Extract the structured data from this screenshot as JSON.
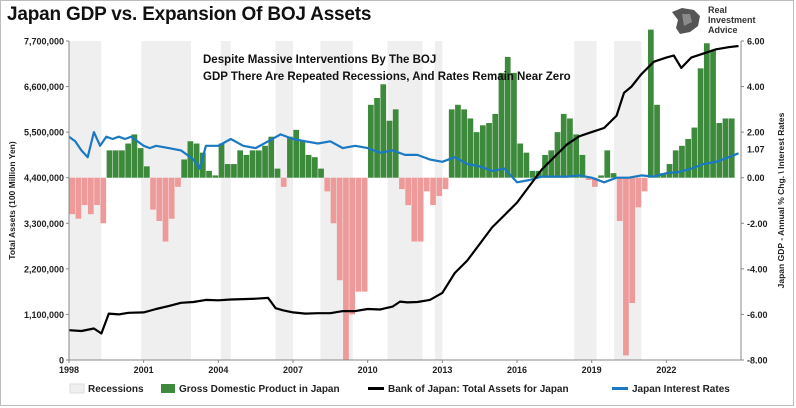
{
  "title": "Japan GDP vs. Expansion Of BOJ Assets",
  "logo": {
    "line1": "Real",
    "line2": "Investment",
    "line3": "Advice"
  },
  "annotation": {
    "line1": "Despite Massive Interventions By The BOJ",
    "line2": "GDP There Are Repeated Recessions, And Rates Remain Near Zero"
  },
  "colors": {
    "recession": "#efefef",
    "gdp_pos": "#3d8a3d",
    "gdp_neg": "#ef9a9a",
    "boj": "#000000",
    "rates": "#1a79c2"
  },
  "chart_data": {
    "type": "bar",
    "title": "Japan GDP vs. Expansion Of BOJ Assets",
    "ylabel_left": "Total Assets (100 Million Yen)",
    "ylabel_right": "Japan GDP - Annual % Chg. \\ Interest Rates",
    "xlim": [
      1998.0,
      2025.0
    ],
    "ylim_left": [
      0,
      7700000
    ],
    "ylim_right": [
      -8,
      6
    ],
    "grid": false,
    "legend_position": "bottom",
    "x_ticks": [
      "1998",
      "2001",
      "2004",
      "2007",
      "2010",
      "2013",
      "2016",
      "2019",
      "2022"
    ],
    "left_ticks": [
      "0",
      "1,100,000",
      "2,200,000",
      "3,300,000",
      "4,400,000",
      "5,500,000",
      "6,600,000",
      "7,700,000"
    ],
    "right_ticks": [
      "-8.00",
      "-6.00",
      "-4.00",
      "-2.00",
      "0.00",
      "2.00",
      "4.00",
      "6.00"
    ],
    "last_value_label": "1.07",
    "legend": [
      "Recessions",
      "Gross Domestic Product in Japan",
      "Bank of Japan: Total Assets for Japan",
      "Japan Interest Rates"
    ],
    "recessions": [
      [
        1998.0,
        1999.3
      ],
      [
        2000.9,
        2002.9
      ],
      [
        2004.1,
        2004.5
      ],
      [
        2006.3,
        2007.0
      ],
      [
        2008.1,
        2009.4
      ],
      [
        2010.8,
        2012.2
      ],
      [
        2012.7,
        2013.0
      ],
      [
        2018.3,
        2019.2
      ],
      [
        2019.9,
        2021.0
      ]
    ],
    "gdp": {
      "name": "Gross Domestic Product in Japan",
      "x": [
        1998.0,
        1998.25,
        1998.5,
        1998.75,
        1999.0,
        1999.25,
        1999.5,
        1999.75,
        2000.0,
        2000.25,
        2000.5,
        2000.75,
        2001.0,
        2001.25,
        2001.5,
        2001.75,
        2002.0,
        2002.25,
        2002.5,
        2002.75,
        2003.0,
        2003.25,
        2003.5,
        2003.75,
        2004.0,
        2004.25,
        2004.5,
        2004.75,
        2005.0,
        2005.25,
        2005.5,
        2005.75,
        2006.0,
        2006.25,
        2006.5,
        2006.75,
        2007.0,
        2007.25,
        2007.5,
        2007.75,
        2008.0,
        2008.25,
        2008.5,
        2008.75,
        2009.0,
        2009.25,
        2009.5,
        2009.75,
        2010.0,
        2010.25,
        2010.5,
        2010.75,
        2011.0,
        2011.25,
        2011.5,
        2011.75,
        2012.0,
        2012.25,
        2012.5,
        2012.75,
        2013.0,
        2013.25,
        2013.5,
        2013.75,
        2014.0,
        2014.25,
        2014.5,
        2014.75,
        2015.0,
        2015.25,
        2015.5,
        2015.75,
        2016.0,
        2016.25,
        2016.5,
        2016.75,
        2017.0,
        2017.25,
        2017.5,
        2017.75,
        2018.0,
        2018.25,
        2018.5,
        2018.75,
        2019.0,
        2019.25,
        2019.5,
        2019.75,
        2020.0,
        2020.25,
        2020.5,
        2020.75,
        2021.0,
        2021.25,
        2021.5,
        2021.75,
        2022.0,
        2022.25,
        2022.5,
        2022.75,
        2023.0,
        2023.25,
        2023.5,
        2023.75,
        2024.0,
        2024.25,
        2024.5
      ],
      "values": [
        -1.6,
        -1.8,
        -1.2,
        -1.6,
        -1.2,
        -2.0,
        1.2,
        1.2,
        1.2,
        1.5,
        1.9,
        1.3,
        0.5,
        -1.4,
        -1.9,
        -2.8,
        -1.8,
        -0.4,
        0.8,
        1.6,
        1.5,
        1.1,
        0.3,
        0.1,
        1.5,
        0.6,
        0.6,
        1.2,
        1.0,
        1.2,
        1.2,
        1.4,
        1.8,
        0.4,
        -0.4,
        1.8,
        2.1,
        1.6,
        1.0,
        0.9,
        0.4,
        -0.6,
        -2.0,
        -4.5,
        -8.0,
        -6.0,
        -5.0,
        -5.0,
        3.2,
        3.5,
        4.1,
        2.5,
        3.0,
        -0.5,
        -1.2,
        -2.8,
        -2.8,
        -0.6,
        -1.2,
        -0.8,
        -0.5,
        3.0,
        3.2,
        3.0,
        2.6,
        2.0,
        2.3,
        2.4,
        2.8,
        4.6,
        5.3,
        4.6,
        1.5,
        1.1,
        0.3,
        0.3,
        1.0,
        1.2,
        2.0,
        2.8,
        2.6,
        1.9,
        1.0,
        -0.1,
        -0.4,
        0.1,
        1.2,
        0.2,
        -1.9,
        -7.8,
        -5.5,
        -1.3,
        -0.6,
        6.5,
        3.2,
        0.2,
        0.6,
        1.2,
        1.4,
        1.7,
        2.2,
        4.8,
        5.9,
        5.6,
        2.4,
        2.6,
        2.6
      ]
    },
    "boj_assets": {
      "name": "Bank of Japan: Total Assets for Japan",
      "x": [
        1998.0,
        1998.5,
        1999.0,
        1999.3,
        1999.6,
        2000.0,
        2000.4,
        2001.0,
        2001.5,
        2002.0,
        2002.5,
        2003.0,
        2003.5,
        2004.0,
        2004.5,
        2005.0,
        2005.5,
        2006.0,
        2006.3,
        2006.6,
        2007.0,
        2007.5,
        2008.0,
        2008.5,
        2009.0,
        2009.5,
        2010.0,
        2010.5,
        2011.0,
        2011.3,
        2011.6,
        2012.0,
        2012.5,
        2013.0,
        2013.5,
        2014.0,
        2014.5,
        2015.0,
        2015.5,
        2016.0,
        2016.5,
        2017.0,
        2017.5,
        2018.0,
        2018.5,
        2019.0,
        2019.5,
        2020.0,
        2020.3,
        2020.6,
        2021.0,
        2021.5,
        2022.0,
        2022.3,
        2022.6,
        2023.0,
        2023.5,
        2024.0,
        2024.5,
        2024.9
      ],
      "values": [
        720000,
        700000,
        760000,
        640000,
        1120000,
        1100000,
        1140000,
        1150000,
        1230000,
        1300000,
        1380000,
        1400000,
        1450000,
        1440000,
        1460000,
        1470000,
        1480000,
        1500000,
        1250000,
        1200000,
        1150000,
        1120000,
        1130000,
        1130000,
        1180000,
        1180000,
        1230000,
        1220000,
        1290000,
        1410000,
        1390000,
        1400000,
        1450000,
        1620000,
        2100000,
        2400000,
        2800000,
        3200000,
        3500000,
        3800000,
        4200000,
        4600000,
        4900000,
        5200000,
        5400000,
        5500000,
        5600000,
        5900000,
        6450000,
        6600000,
        6900000,
        7200000,
        7300000,
        7350000,
        7050000,
        7300000,
        7400000,
        7500000,
        7550000,
        7580000
      ]
    },
    "interest_rates": {
      "name": "Japan Interest Rates",
      "x": [
        1998.0,
        1998.25,
        1998.5,
        1998.75,
        1999.0,
        1999.25,
        1999.5,
        1999.75,
        2000.0,
        2000.25,
        2000.5,
        2000.75,
        2001.0,
        2001.25,
        2001.5,
        2002.0,
        2002.5,
        2003.0,
        2003.25,
        2003.5,
        2003.75,
        2004.0,
        2004.5,
        2005.0,
        2005.5,
        2006.0,
        2006.5,
        2007.0,
        2007.5,
        2008.0,
        2008.5,
        2009.0,
        2009.5,
        2010.0,
        2010.5,
        2011.0,
        2011.5,
        2012.0,
        2012.5,
        2013.0,
        2013.5,
        2014.0,
        2014.5,
        2015.0,
        2015.5,
        2016.0,
        2016.5,
        2017.0,
        2017.5,
        2018.0,
        2018.5,
        2019.0,
        2019.5,
        2020.0,
        2020.5,
        2021.0,
        2021.5,
        2022.0,
        2022.5,
        2023.0,
        2023.5,
        2024.0,
        2024.5,
        2024.9
      ],
      "values": [
        1.8,
        1.6,
        1.2,
        0.9,
        2.0,
        1.4,
        1.8,
        1.7,
        1.8,
        1.7,
        1.8,
        1.6,
        1.4,
        1.3,
        1.4,
        1.3,
        1.2,
        0.8,
        0.4,
        1.4,
        1.4,
        1.4,
        1.7,
        1.4,
        1.3,
        1.6,
        1.9,
        1.7,
        1.6,
        1.5,
        1.6,
        1.3,
        1.4,
        1.3,
        1.1,
        1.2,
        1.0,
        1.0,
        0.8,
        0.7,
        0.9,
        0.6,
        0.5,
        0.3,
        0.4,
        -0.2,
        -0.1,
        0.05,
        0.05,
        0.05,
        0.1,
        0.0,
        -0.2,
        0.0,
        0.0,
        0.1,
        0.05,
        0.2,
        0.25,
        0.4,
        0.6,
        0.7,
        0.9,
        1.07
      ]
    }
  }
}
